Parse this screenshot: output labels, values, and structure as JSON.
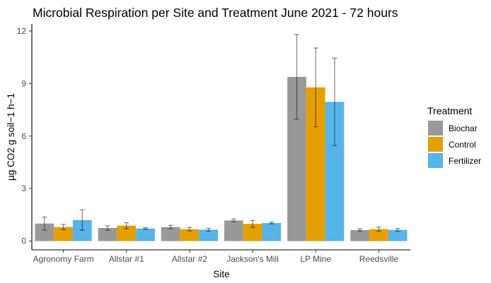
{
  "chart_data": {
    "type": "bar",
    "title": "Microbial Respiration per Site and Treatment June 2021 - 72 hours",
    "xlabel": "Site",
    "ylabel": "µg CO2 g soil−1 h−1",
    "ylim": [
      -0.5,
      12.4
    ],
    "yticks": [
      0,
      3,
      6,
      9,
      12
    ],
    "grid": false,
    "legend_position": "right",
    "legend_title": "Treatment",
    "categories": [
      "Agronomy Farm",
      "Allstar #1",
      "Allstar #2",
      "Jackson's Mill",
      "LP Mine",
      "Reedsville"
    ],
    "series": [
      {
        "name": "Biochar",
        "color": "#999999",
        "values": [
          1.0,
          0.75,
          0.8,
          1.18,
          9.38,
          0.63
        ],
        "error": [
          0.37,
          0.13,
          0.1,
          0.08,
          2.42,
          0.07
        ]
      },
      {
        "name": "Control",
        "color": "#E69F00",
        "values": [
          0.8,
          0.88,
          0.68,
          0.98,
          8.78,
          0.68
        ],
        "error": [
          0.15,
          0.17,
          0.1,
          0.2,
          2.25,
          0.12
        ]
      },
      {
        "name": "Fertilizer",
        "color": "#56B4E9",
        "values": [
          1.2,
          0.72,
          0.65,
          1.03,
          7.95,
          0.64
        ],
        "error": [
          0.58,
          0.05,
          0.08,
          0.05,
          2.5,
          0.08
        ]
      }
    ]
  }
}
